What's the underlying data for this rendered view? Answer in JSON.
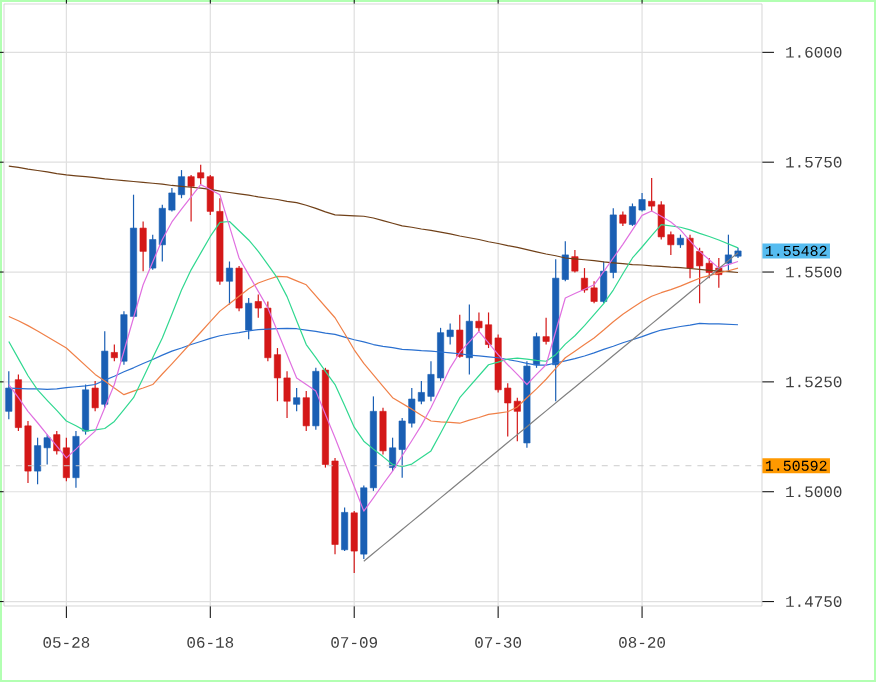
{
  "chart_data": {
    "type": "candlestick",
    "categories": [
      null,
      null,
      null,
      null,
      null,
      null,
      "05-28",
      null,
      null,
      null,
      null,
      null,
      null,
      null,
      null,
      null,
      null,
      null,
      null,
      null,
      null,
      "06-18",
      null,
      null,
      null,
      null,
      null,
      null,
      null,
      null,
      null,
      null,
      null,
      null,
      null,
      null,
      "07-09",
      null,
      null,
      null,
      null,
      null,
      null,
      null,
      null,
      null,
      null,
      null,
      null,
      null,
      null,
      "07-30",
      null,
      null,
      null,
      null,
      null,
      null,
      null,
      null,
      null,
      null,
      null,
      null,
      null,
      null,
      "08-20",
      null,
      null,
      null,
      null,
      null,
      null,
      null,
      null,
      null,
      null
    ],
    "ohlc": [
      [
        1.5183,
        1.5274,
        1.5165,
        1.5236
      ],
      [
        1.5255,
        1.5267,
        1.5138,
        1.5146
      ],
      [
        1.515,
        1.5161,
        1.502,
        1.5047
      ],
      [
        1.5047,
        1.5123,
        1.5017,
        1.5105
      ],
      [
        1.51,
        1.513,
        1.5062,
        1.5123
      ],
      [
        1.513,
        1.5138,
        1.5085,
        1.5093
      ],
      [
        1.51,
        1.5123,
        1.5024,
        1.5032
      ],
      [
        1.5032,
        1.5138,
        1.5009,
        1.5126
      ],
      [
        1.5138,
        1.5244,
        1.513,
        1.5232
      ],
      [
        1.5236,
        1.5252,
        1.5183,
        1.5191
      ],
      [
        1.5199,
        1.5365,
        1.5191,
        1.532
      ],
      [
        1.5317,
        1.5335,
        1.5297,
        1.5305
      ],
      [
        1.5297,
        1.5411,
        1.5289,
        1.5403
      ],
      [
        1.5399,
        1.5676,
        1.5396,
        1.56
      ],
      [
        1.56,
        1.5615,
        1.5502,
        1.5547
      ],
      [
        1.5509,
        1.5585,
        1.5505,
        1.5574
      ],
      [
        1.5562,
        1.5653,
        1.5524,
        1.5645
      ],
      [
        1.5641,
        1.5691,
        1.5638,
        1.568
      ],
      [
        1.5676,
        1.5732,
        1.5668,
        1.5717
      ],
      [
        1.5717,
        1.5721,
        1.5615,
        1.5695
      ],
      [
        1.5726,
        1.5744,
        1.5699,
        1.5714
      ],
      [
        1.5717,
        1.5721,
        1.563,
        1.5638
      ],
      [
        1.5638,
        1.5668,
        1.5471,
        1.5479
      ],
      [
        1.5479,
        1.5524,
        1.5426,
        1.5509
      ],
      [
        1.5509,
        1.5514,
        1.5411,
        1.5418
      ],
      [
        1.5368,
        1.5441,
        1.5347,
        1.5429
      ],
      [
        1.5433,
        1.5449,
        1.5396,
        1.5418
      ],
      [
        1.5418,
        1.5433,
        1.5297,
        1.5305
      ],
      [
        1.5312,
        1.5327,
        1.5206,
        1.5259
      ],
      [
        1.5259,
        1.5274,
        1.5168,
        1.5206
      ],
      [
        1.5199,
        1.5236,
        1.5183,
        1.5214
      ],
      [
        1.5214,
        1.5229,
        1.5138,
        1.515
      ],
      [
        1.515,
        1.5282,
        1.5141,
        1.5274
      ],
      [
        1.5277,
        1.5282,
        1.5055,
        1.5062
      ],
      [
        1.507,
        1.5077,
        1.4858,
        1.488
      ],
      [
        1.4868,
        1.4964,
        1.4865,
        1.4953
      ],
      [
        1.4952,
        1.4956,
        1.4815,
        1.4865
      ],
      [
        1.4858,
        1.5014,
        1.4847,
        1.5009
      ],
      [
        1.5009,
        1.5217,
        1.5002,
        1.5183
      ],
      [
        1.5183,
        1.5191,
        1.5085,
        1.5093
      ],
      [
        1.5055,
        1.5123,
        1.5047,
        1.51
      ],
      [
        1.5096,
        1.5168,
        1.5032,
        1.5161
      ],
      [
        1.5156,
        1.5236,
        1.5146,
        1.5211
      ],
      [
        1.5206,
        1.5252,
        1.5199,
        1.5226
      ],
      [
        1.5217,
        1.5297,
        1.5206,
        1.5267
      ],
      [
        1.5259,
        1.5373,
        1.5252,
        1.5362
      ],
      [
        1.5353,
        1.5383,
        1.5335,
        1.5368
      ],
      [
        1.5368,
        1.5403,
        1.5305,
        1.5308
      ],
      [
        1.5305,
        1.5426,
        1.5267,
        1.5388
      ],
      [
        1.5388,
        1.5408,
        1.5365,
        1.5373
      ],
      [
        1.538,
        1.5408,
        1.5327,
        1.5335
      ],
      [
        1.535,
        1.5358,
        1.5226,
        1.5232
      ],
      [
        1.5236,
        1.5247,
        1.5126,
        1.5202
      ],
      [
        1.5206,
        1.5214,
        1.5115,
        1.5183
      ],
      [
        1.5111,
        1.5297,
        1.51,
        1.5286
      ],
      [
        1.5289,
        1.5362,
        1.5282,
        1.5353
      ],
      [
        1.5353,
        1.5396,
        1.5335,
        1.5342
      ],
      [
        1.5289,
        1.5529,
        1.5206,
        1.5486
      ],
      [
        1.5483,
        1.557,
        1.5479,
        1.5539
      ],
      [
        1.5535,
        1.555,
        1.5499,
        1.5502
      ],
      [
        1.5486,
        1.5509,
        1.5453,
        1.5459
      ],
      [
        1.5464,
        1.5479,
        1.5429,
        1.5433
      ],
      [
        1.5433,
        1.5524,
        1.5429,
        1.5502
      ],
      [
        1.5499,
        1.5645,
        1.5486,
        1.563
      ],
      [
        1.563,
        1.5638,
        1.5605,
        1.5611
      ],
      [
        1.5608,
        1.5656,
        1.5605,
        1.5649
      ],
      [
        1.5641,
        1.568,
        1.5638,
        1.5665
      ],
      [
        1.5661,
        1.5714,
        1.5638,
        1.565
      ],
      [
        1.5653,
        1.5661,
        1.5574,
        1.558
      ],
      [
        1.5585,
        1.5592,
        1.5539,
        1.5562
      ],
      [
        1.5562,
        1.5585,
        1.5555,
        1.5577
      ],
      [
        1.5577,
        1.5585,
        1.5486,
        1.5509
      ],
      [
        1.5547,
        1.5555,
        1.5429,
        1.5514
      ],
      [
        1.552,
        1.5532,
        1.5486,
        1.5499
      ],
      [
        1.5509,
        1.5532,
        1.5464,
        1.5494
      ],
      [
        1.552,
        1.5585,
        1.5502,
        1.5539
      ],
      [
        1.5536,
        1.5555,
        1.5532,
        1.5548
      ]
    ],
    "colors": [
      "#1a5fb4",
      "#d41818",
      "#d41818",
      "#1a5fb4",
      "#1a5fb4",
      "#d41818",
      "#d41818",
      "#1a5fb4",
      "#1a5fb4",
      "#d41818",
      "#1a5fb4",
      "#d41818",
      "#1a5fb4",
      "#1a5fb4",
      "#d41818",
      "#1a5fb4",
      "#1a5fb4",
      "#1a5fb4",
      "#1a5fb4",
      "#d41818",
      "#d41818",
      "#d41818",
      "#d41818",
      "#1a5fb4",
      "#d41818",
      "#1a5fb4",
      "#d41818",
      "#d41818",
      "#d41818",
      "#d41818",
      "#1a5fb4",
      "#d41818",
      "#1a5fb4",
      "#d41818",
      "#d41818",
      "#1a5fb4",
      "#d41818",
      "#1a5fb4",
      "#1a5fb4",
      "#d41818",
      "#1a5fb4",
      "#1a5fb4",
      "#1a5fb4",
      "#1a5fb4",
      "#1a5fb4",
      "#1a5fb4",
      "#1a5fb4",
      "#d41818",
      "#1a5fb4",
      "#d41818",
      "#d41818",
      "#d41818",
      "#d41818",
      "#d41818",
      "#1a5fb4",
      "#1a5fb4",
      "#d41818",
      "#1a5fb4",
      "#1a5fb4",
      "#d41818",
      "#d41818",
      "#d41818",
      "#1a5fb4",
      "#1a5fb4",
      "#d41818",
      "#1a5fb4",
      "#1a5fb4",
      "#d41818",
      "#d41818",
      "#d41818",
      "#1a5fb4",
      "#d41818",
      "#d41818",
      "#d41818",
      "#d41818",
      "#1a5fb4",
      "#1a5fb4"
    ],
    "series": [
      {
        "type": "line",
        "color": "#704018",
        "values": [
          1.5741,
          1.5738,
          1.5734,
          1.5731,
          1.5728,
          1.5724,
          1.5721,
          1.5719,
          1.5717,
          1.5715,
          1.5712,
          1.571,
          1.5708,
          1.5706,
          1.5704,
          1.5702,
          1.57,
          1.5697,
          1.5695,
          1.5693,
          1.5691,
          1.5688,
          1.5684,
          1.5681,
          1.5678,
          1.5675,
          1.5671,
          1.5668,
          1.5665,
          1.5661,
          1.5658,
          1.5652,
          1.5645,
          1.5637,
          1.563,
          1.5629,
          1.5628,
          1.5627,
          1.5623,
          1.5617,
          1.5611,
          1.5605,
          1.5602,
          1.5598,
          1.5595,
          1.5591,
          1.5587,
          1.5582,
          1.5578,
          1.5574,
          1.5569,
          1.5565,
          1.556,
          1.5556,
          1.5551,
          1.5546,
          1.5541,
          1.5537,
          1.5532,
          1.553,
          1.5528,
          1.5526,
          1.5523,
          1.5521,
          1.5519,
          1.5517,
          1.5516,
          1.5514,
          1.5513,
          1.5511,
          1.551,
          1.5508,
          1.5506,
          1.5504,
          1.5502,
          1.5501,
          1.5499
        ]
      },
      {
        "type": "line",
        "color": "#2a70d0",
        "values": [
          1.5236,
          1.5235,
          1.5234,
          1.5234,
          1.5233,
          1.5234,
          1.5237,
          1.5239,
          1.5241,
          1.5244,
          1.5254,
          1.5263,
          1.5273,
          1.5282,
          1.5292,
          1.5301,
          1.5311,
          1.532,
          1.5327,
          1.5335,
          1.5342,
          1.5349,
          1.5355,
          1.5359,
          1.5362,
          1.5366,
          1.5369,
          1.537,
          1.5371,
          1.5372,
          1.5371,
          1.5368,
          1.5365,
          1.5361,
          1.5358,
          1.5352,
          1.5346,
          1.5341,
          1.5335,
          1.5331,
          1.5328,
          1.5324,
          1.5323,
          1.5321,
          1.532,
          1.5318,
          1.5316,
          1.5314,
          1.5311,
          1.5309,
          1.5307,
          1.5305,
          1.5301,
          1.5297,
          1.5292,
          1.5288,
          1.5288,
          1.5293,
          1.5298,
          1.5303,
          1.5309,
          1.5316,
          1.5324,
          1.5331,
          1.5339,
          1.5346,
          1.5353,
          1.5361,
          1.5368,
          1.5372,
          1.5376,
          1.5379,
          1.5383,
          1.5382,
          1.5382,
          1.5381,
          1.538
        ]
      },
      {
        "type": "line",
        "color": "#f08048",
        "values": [
          1.5399,
          1.5389,
          1.5378,
          1.5366,
          1.5353,
          1.534,
          1.5327,
          1.5307,
          1.5287,
          1.5267,
          1.5252,
          1.5236,
          1.5221,
          1.5229,
          1.5236,
          1.5244,
          1.5268,
          1.5291,
          1.5315,
          1.5339,
          1.5363,
          1.5387,
          1.5411,
          1.5428,
          1.5445,
          1.5462,
          1.5475,
          1.5483,
          1.549,
          1.5489,
          1.548,
          1.5471,
          1.5446,
          1.5421,
          1.5396,
          1.536,
          1.5323,
          1.5292,
          1.5266,
          1.524,
          1.5214,
          1.5201,
          1.5188,
          1.5174,
          1.5161,
          1.5159,
          1.5158,
          1.5156,
          1.5163,
          1.5169,
          1.5176,
          1.5179,
          1.5182,
          1.5193,
          1.5214,
          1.5234,
          1.5256,
          1.5281,
          1.5305,
          1.532,
          1.5335,
          1.535,
          1.5368,
          1.5387,
          1.5404,
          1.5419,
          1.5433,
          1.5445,
          1.5453,
          1.546,
          1.5468,
          1.5477,
          1.5486,
          1.5492,
          1.5498,
          1.5503,
          1.5509
        ]
      },
      {
        "type": "line",
        "color": "#30d890",
        "values": [
          1.5342,
          1.5303,
          1.5264,
          1.5232,
          1.5208,
          1.5185,
          1.5161,
          1.515,
          1.5138,
          1.5141,
          1.5144,
          1.516,
          1.5187,
          1.5214,
          1.5259,
          1.5305,
          1.535,
          1.5404,
          1.5459,
          1.5505,
          1.5543,
          1.5581,
          1.5613,
          1.5615,
          1.5594,
          1.5573,
          1.5547,
          1.5517,
          1.5486,
          1.5444,
          1.5389,
          1.5335,
          1.5305,
          1.5274,
          1.5244,
          1.5196,
          1.5147,
          1.5115,
          1.5097,
          1.508,
          1.5062,
          1.5057,
          1.5063,
          1.5078,
          1.5093,
          1.5133,
          1.5174,
          1.5214,
          1.5239,
          1.5264,
          1.5289,
          1.5295,
          1.5302,
          1.5304,
          1.5302,
          1.5299,
          1.5297,
          1.5312,
          1.5336,
          1.5355,
          1.5378,
          1.5403,
          1.5428,
          1.5459,
          1.5496,
          1.5532,
          1.5557,
          1.5583,
          1.5608,
          1.5605,
          1.5602,
          1.5596,
          1.5588,
          1.5581,
          1.5573,
          1.5564,
          1.5555
        ]
      },
      {
        "type": "line",
        "color": "#e070e0",
        "values": [
          1.5244,
          1.5214,
          1.5183,
          1.5157,
          1.513,
          1.5104,
          1.5077,
          1.5097,
          1.5118,
          1.5138,
          1.5191,
          1.5244,
          1.532,
          1.5396,
          1.5471,
          1.5523,
          1.5574,
          1.5614,
          1.5643,
          1.5671,
          1.5699,
          1.5688,
          1.5676,
          1.5604,
          1.5532,
          1.5494,
          1.5456,
          1.5418,
          1.5365,
          1.5312,
          1.5259,
          1.5244,
          1.5229,
          1.5176,
          1.5123,
          1.5067,
          1.5012,
          1.4956,
          1.4986,
          1.5017,
          1.5047,
          1.5082,
          1.5116,
          1.5151,
          1.5191,
          1.5236,
          1.5282,
          1.5317,
          1.5341,
          1.5365,
          1.5339,
          1.5312,
          1.5289,
          1.5267,
          1.5244,
          1.5267,
          1.5289,
          1.5365,
          1.5441,
          1.5451,
          1.5461,
          1.5471,
          1.5501,
          1.5532,
          1.5563,
          1.5596,
          1.5629,
          1.5639,
          1.5627,
          1.5614,
          1.5596,
          1.5571,
          1.5547,
          1.5528,
          1.5509,
          1.5517,
          1.5524
        ]
      },
      {
        "type": "line",
        "color": "#808080",
        "values": [
          null,
          null,
          null,
          null,
          null,
          null,
          null,
          null,
          null,
          null,
          null,
          null,
          null,
          null,
          null,
          null,
          null,
          null,
          null,
          null,
          null,
          null,
          null,
          null,
          null,
          null,
          null,
          null,
          null,
          null,
          null,
          null,
          null,
          null,
          null,
          null,
          null,
          1.4842,
          1.486,
          1.4878,
          1.4896,
          1.4914,
          1.4932,
          1.495,
          1.4968,
          1.4986,
          1.5004,
          1.5022,
          1.504,
          1.5058,
          1.5076,
          1.5094,
          1.5112,
          1.513,
          1.5148,
          1.5166,
          1.5184,
          1.5202,
          1.522,
          1.5238,
          1.5256,
          1.5274,
          1.5292,
          1.531,
          1.5328,
          1.5346,
          1.5364,
          1.5382,
          1.54,
          1.5418,
          1.5436,
          1.5454,
          1.5472,
          1.549,
          1.5508,
          1.5526,
          1.5544
        ]
      }
    ],
    "ylim": [
      1.474,
      1.611
    ],
    "yticks": [
      {
        "value": 1.475,
        "label": "1.4750"
      },
      {
        "value": 1.5,
        "label": "1.5000"
      },
      {
        "value": 1.525,
        "label": "1.5250"
      },
      {
        "value": 1.55,
        "label": "1.5500"
      },
      {
        "value": 1.575,
        "label": "1.5750"
      },
      {
        "value": 1.6,
        "label": "1.6000"
      }
    ],
    "grid": true,
    "ref_lines": [
      {
        "axis": "y",
        "value": 1.50592,
        "label": "1.50592",
        "color": "#cccccc",
        "line_style": "dashed"
      }
    ],
    "annotations": [
      "1.55482"
    ]
  }
}
